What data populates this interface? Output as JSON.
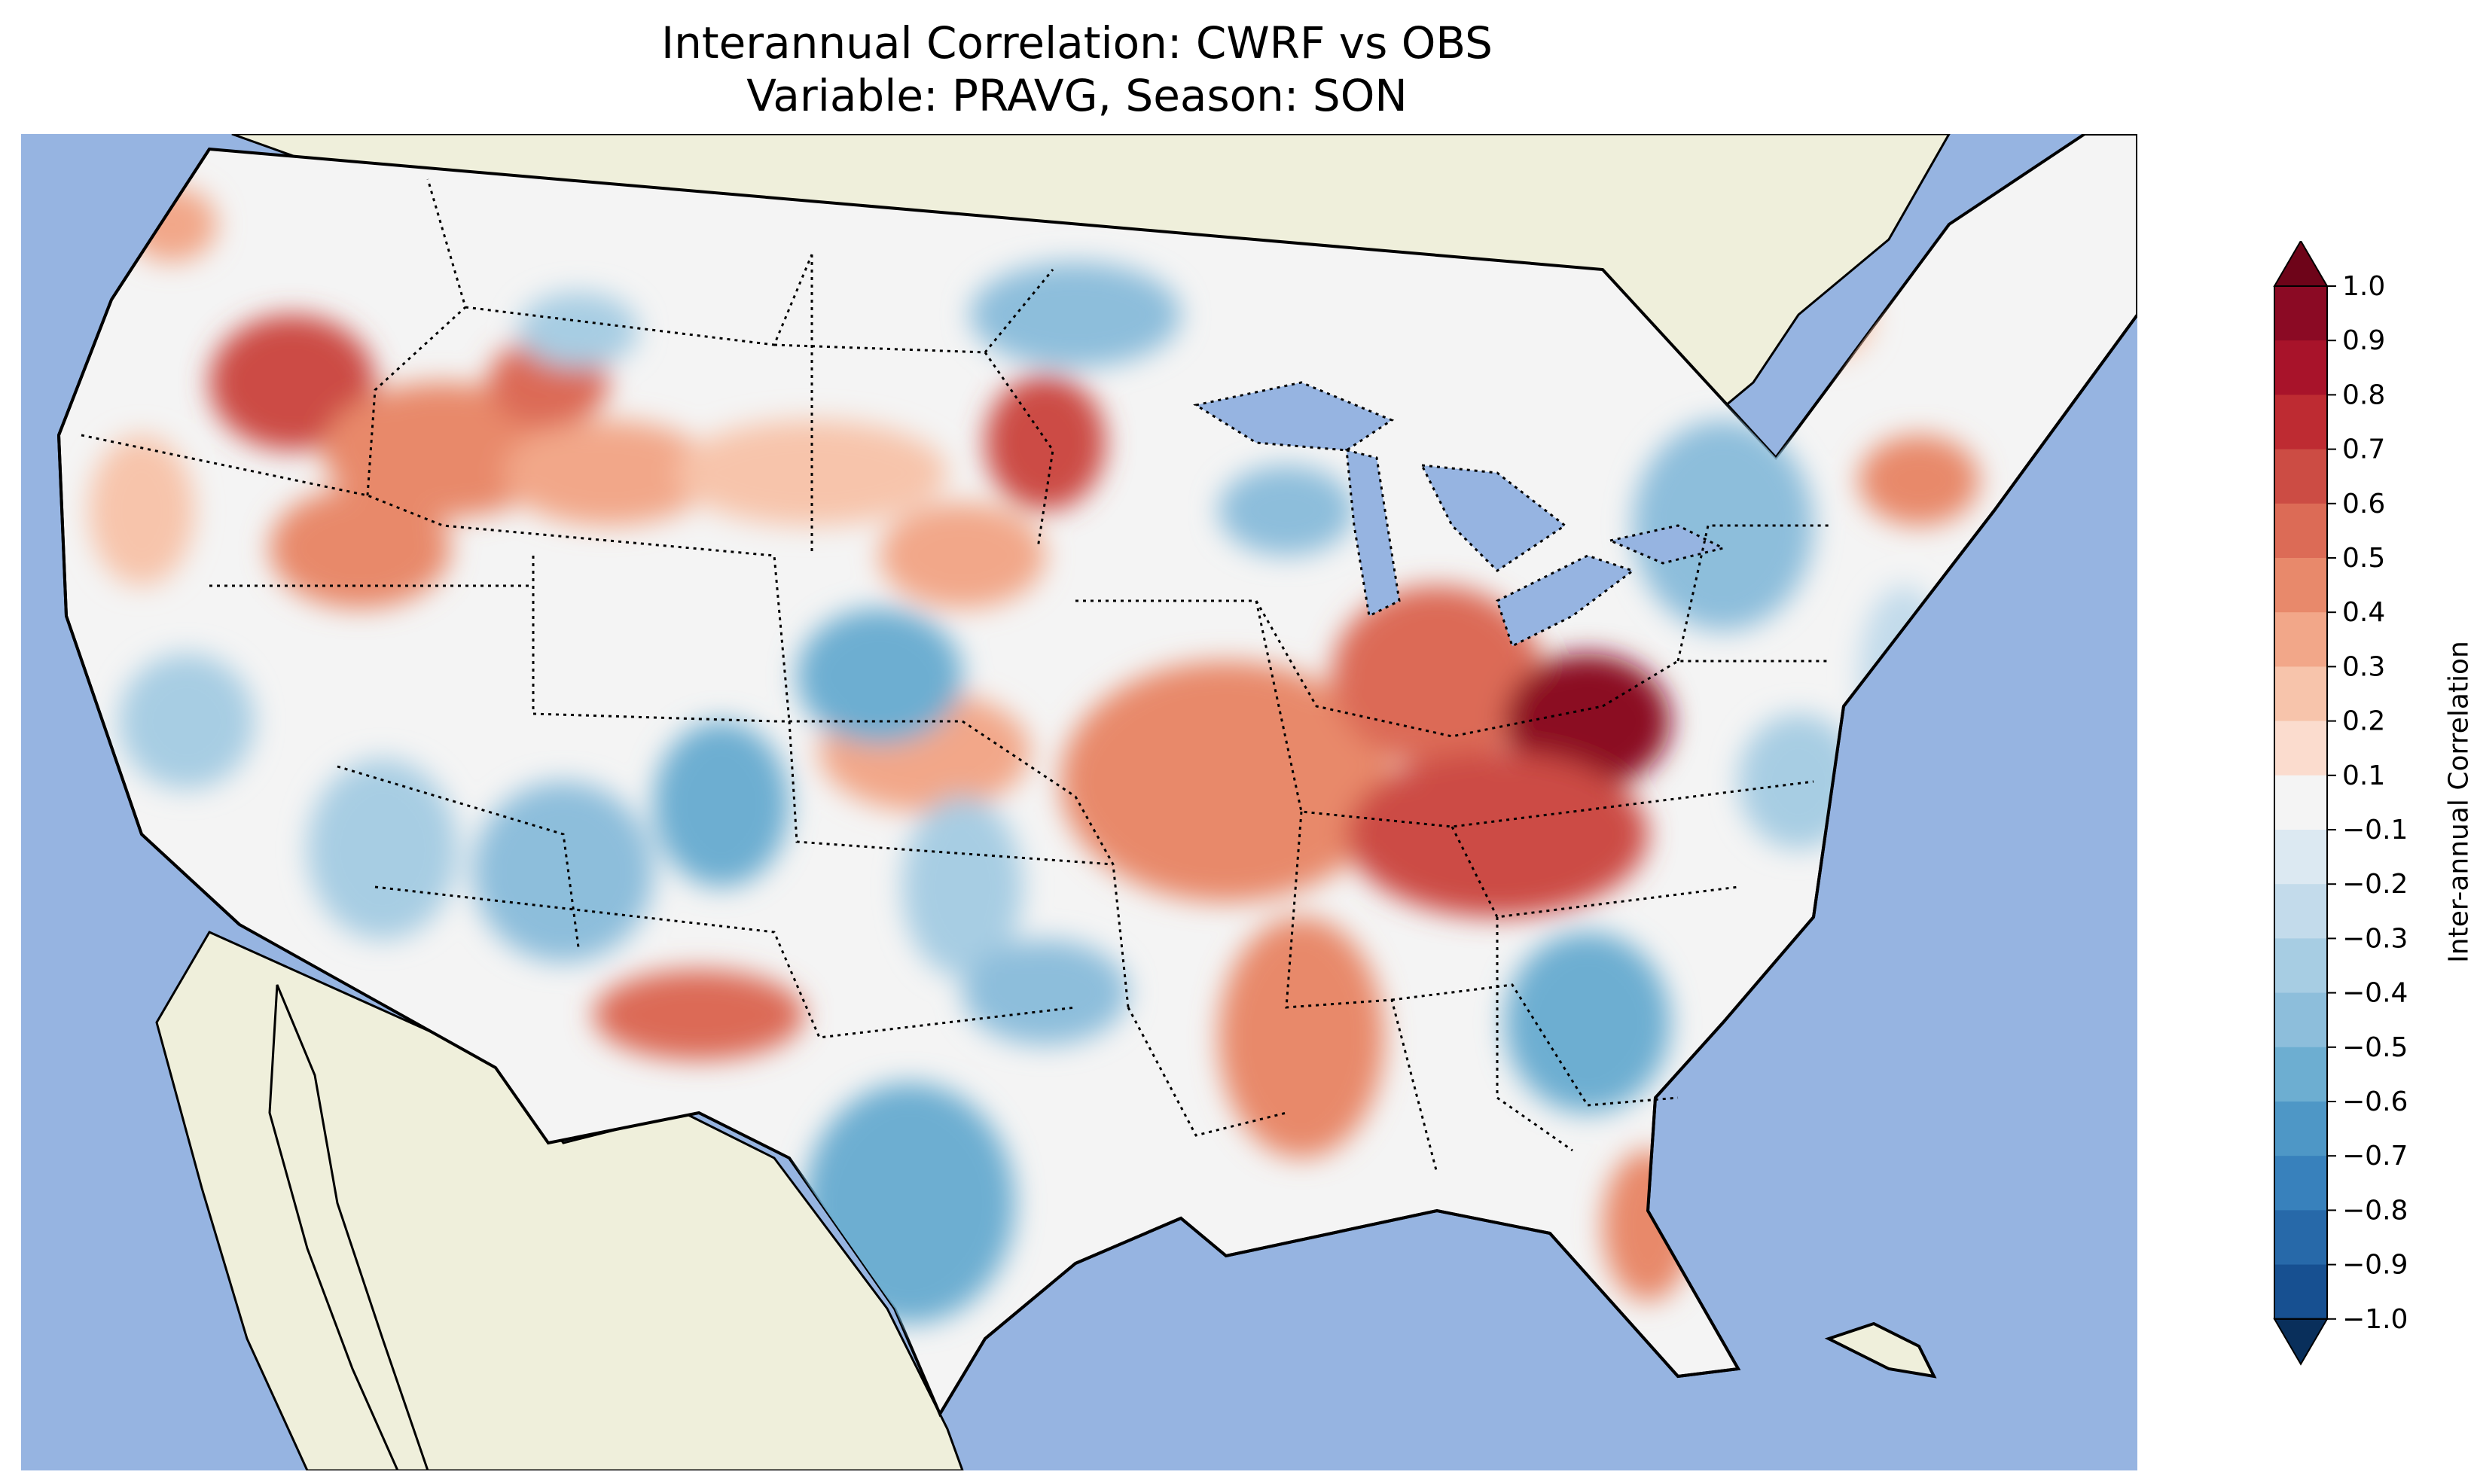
{
  "figure": {
    "title_line1": "Interannual Correlation: CWRF vs OBS",
    "title_line2": "Variable: PRAVG, Season: SON"
  },
  "colors": {
    "ocean": "#96b4e1",
    "land_outside": "#efefdb",
    "coastline": "#000000",
    "state_border": "#000000"
  },
  "colorbar": {
    "label": "Inter-annual Correlation",
    "ticks": [
      "1.0",
      "0.9",
      "0.8",
      "0.7",
      "0.6",
      "0.5",
      "0.4",
      "0.3",
      "0.2",
      "0.1",
      "−0.1",
      "−0.2",
      "−0.3",
      "−0.4",
      "−0.5",
      "−0.6",
      "−0.7",
      "−0.8",
      "−0.9",
      "−1.0"
    ],
    "colors_top_to_bottom": [
      "#8b0a24",
      "#a8132a",
      "#be2b32",
      "#cc4c44",
      "#dc6b56",
      "#e8896b",
      "#f2a789",
      "#f7c4ab",
      "#fbdcce",
      "#f4f4f4",
      "#dce9f2",
      "#c3dbeb",
      "#a7cde3",
      "#8dbedb",
      "#6daed1",
      "#4e97c6",
      "#3881bc",
      "#2769a9",
      "#175091",
      "#0b3b72"
    ],
    "extend_max_color": "#6e0419",
    "extend_min_color": "#092f5b"
  },
  "map_features": [
    "ocean-fill",
    "land-fill",
    "coastlines",
    "state-borders",
    "great-lakes",
    "correlation-contours"
  ],
  "chart_data": {
    "type": "heatmap",
    "title": "Interannual Correlation: CWRF vs OBS / Variable: PRAVG, Season: SON",
    "colorbar_range": [
      -1.0,
      1.0
    ],
    "colorbar_levels": [
      -1.0,
      -0.9,
      -0.8,
      -0.7,
      -0.6,
      -0.5,
      -0.4,
      -0.3,
      -0.2,
      -0.1,
      0.1,
      0.2,
      0.3,
      0.4,
      0.5,
      0.6,
      0.7,
      0.8,
      0.9,
      1.0
    ],
    "colorbar_label": "Inter-annual Correlation",
    "colormap": "RdBu_r",
    "extend": "both"
  }
}
